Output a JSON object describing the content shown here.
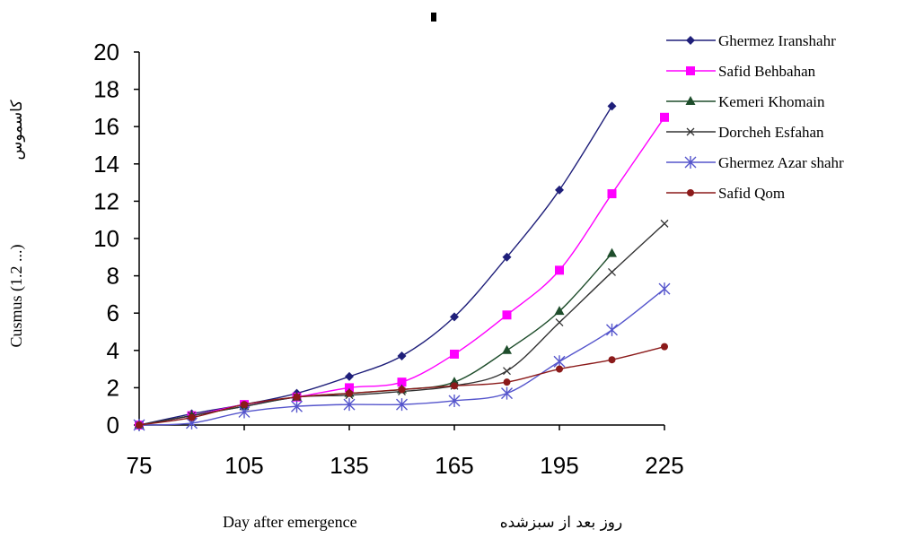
{
  "chart_data": {
    "type": "line",
    "xlabel": "Day after emergence",
    "xlabel_fa": "روز بعد از سبزشده",
    "ylabel": "Cusmus (1.2 ...)",
    "ylabel_fa": "کاسموس",
    "xlim": [
      75,
      225
    ],
    "ylim": [
      0,
      20
    ],
    "xticks": [
      75,
      105,
      135,
      165,
      195,
      225
    ],
    "yticks": [
      0,
      2,
      4,
      6,
      8,
      10,
      12,
      14,
      16,
      18,
      20
    ],
    "grid": false,
    "legend_position": "right",
    "series": [
      {
        "name": "Ghermez Iranshahr",
        "color": "#1f1f7a",
        "marker": "diamond",
        "x": [
          75,
          90,
          105,
          120,
          135,
          150,
          165,
          180,
          195,
          210
        ],
        "y": [
          0,
          0.6,
          1.1,
          1.7,
          2.6,
          3.7,
          5.8,
          9.0,
          12.6,
          17.1
        ]
      },
      {
        "name": "Safid Behbahan",
        "color": "#ff00ff",
        "marker": "square",
        "x": [
          75,
          90,
          105,
          120,
          135,
          150,
          165,
          180,
          195,
          210,
          225
        ],
        "y": [
          0,
          0.5,
          1.1,
          1.5,
          2.0,
          2.3,
          3.8,
          5.9,
          8.3,
          12.4,
          16.5
        ]
      },
      {
        "name": "Kemeri Khomain",
        "color": "#1e4d2b",
        "marker": "triangle",
        "x": [
          75,
          90,
          105,
          120,
          135,
          150,
          165,
          180,
          195,
          210
        ],
        "y": [
          0,
          0.5,
          1.0,
          1.5,
          1.7,
          1.9,
          2.3,
          4.0,
          6.1,
          9.2
        ]
      },
      {
        "name": "Dorcheh Esfahan",
        "color": "#333333",
        "marker": "x",
        "x": [
          75,
          90,
          105,
          120,
          135,
          150,
          165,
          180,
          195,
          210,
          225
        ],
        "y": [
          0,
          0.5,
          1.0,
          1.5,
          1.6,
          1.8,
          2.1,
          2.9,
          5.5,
          8.2,
          10.8
        ]
      },
      {
        "name": "Ghermez Azar shahr",
        "color": "#5555cc",
        "marker": "star",
        "x": [
          75,
          90,
          105,
          120,
          135,
          150,
          165,
          180,
          195,
          210,
          225
        ],
        "y": [
          0,
          0.1,
          0.7,
          1.0,
          1.1,
          1.1,
          1.3,
          1.7,
          3.4,
          5.1,
          7.3
        ]
      },
      {
        "name": "Safid Qom",
        "color": "#8b1a1a",
        "marker": "circle",
        "x": [
          75,
          90,
          105,
          120,
          135,
          150,
          165,
          180,
          195,
          210,
          225
        ],
        "y": [
          0,
          0.4,
          1.1,
          1.5,
          1.7,
          1.9,
          2.1,
          2.3,
          3.0,
          3.5,
          4.2
        ]
      }
    ]
  }
}
